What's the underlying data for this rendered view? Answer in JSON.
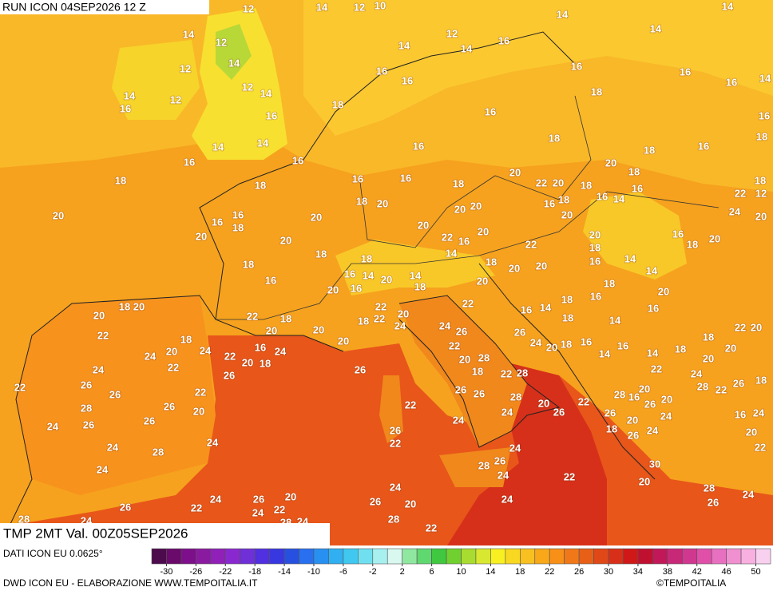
{
  "header": {
    "run": "RUN ICON 04SEP2026 12 Z",
    "valid": "TMP 2MT Val. 00Z05SEP2026",
    "source": "DATI ICON EU 0.0625°",
    "credit": "DWD ICON EU - ELABORAZIONE WWW.TEMPOITALIA.IT",
    "copyright": "©TEMPOITALIA"
  },
  "map_labels": [
    14,
    12,
    10,
    12,
    14,
    12,
    14,
    12,
    14,
    16,
    12,
    12,
    14,
    16,
    14,
    14,
    16,
    14,
    12,
    14,
    16,
    14,
    16,
    14,
    14,
    16,
    16,
    14,
    18,
    16,
    16,
    18,
    18,
    16,
    18,
    16,
    16,
    18,
    16,
    16,
    18,
    18,
    16,
    16,
    18,
    20,
    22,
    20,
    18,
    20,
    18,
    16,
    22,
    18,
    12,
    20,
    16,
    16,
    18,
    18,
    20,
    20,
    20,
    20,
    20,
    16,
    18,
    20,
    16,
    14,
    24,
    20,
    20,
    20,
    18,
    22,
    16,
    20,
    22,
    20,
    18,
    16,
    18,
    20,
    18,
    16,
    18,
    16,
    14,
    20,
    14,
    18,
    14,
    18,
    20,
    20,
    16,
    14,
    14,
    18,
    20,
    16,
    20,
    16,
    18,
    14,
    16,
    18,
    16,
    20,
    20,
    18,
    20,
    22,
    22,
    18,
    20,
    20,
    18,
    22,
    22,
    20,
    24,
    22,
    14,
    18,
    22,
    20,
    18,
    24,
    16,
    24,
    20,
    24,
    26,
    22,
    20,
    28,
    26,
    24,
    20,
    18,
    16,
    14,
    16,
    14,
    18,
    20,
    20,
    24,
    20,
    22,
    22,
    20,
    18,
    26,
    26,
    18,
    22,
    28,
    22,
    24,
    24,
    22,
    26,
    28,
    26,
    22,
    26,
    20,
    26,
    24,
    26,
    26,
    26,
    22,
    28,
    20,
    26,
    24,
    24,
    28,
    16,
    20,
    26,
    24,
    26,
    20,
    18,
    26,
    24,
    22,
    28,
    22,
    20,
    26,
    18,
    16,
    24,
    20,
    22,
    26,
    22,
    24,
    28,
    24,
    24,
    24,
    28,
    26,
    24,
    22,
    30,
    20,
    28,
    26,
    24,
    26,
    24,
    22,
    20,
    22,
    24,
    26,
    24,
    26,
    20,
    24,
    28,
    22,
    28,
    24,
    28,
    24,
    26
  ],
  "colorbar": {
    "ticks": [
      -30,
      -26,
      -22,
      -18,
      -14,
      -10,
      -6,
      -2,
      2,
      6,
      10,
      14,
      18,
      22,
      26,
      30,
      34,
      38,
      42,
      46,
      50
    ],
    "range": [
      -32,
      52
    ],
    "colors": [
      "#4d0a4d",
      "#6a0a6a",
      "#7d108a",
      "#8a1aa0",
      "#9020b8",
      "#8a28d0",
      "#7030d8",
      "#5030e0",
      "#3838e0",
      "#2850e0",
      "#2870f0",
      "#2890f0",
      "#30b0f0",
      "#40c8f0",
      "#70e0f0",
      "#a8f0f0",
      "#d8f8f0",
      "#90e8a0",
      "#60d870",
      "#40c840",
      "#70d030",
      "#a8dc30",
      "#d8e830",
      "#f8f020",
      "#f8d820",
      "#f8c020",
      "#f8a818",
      "#f89018",
      "#f07818",
      "#e86018",
      "#e04818",
      "#d83018",
      "#d01818",
      "#c01030",
      "#c01858",
      "#c82878",
      "#d03890",
      "#e050a8",
      "#e870c0",
      "#f090d0",
      "#f8b0e0",
      "#f8d0f0"
    ]
  }
}
